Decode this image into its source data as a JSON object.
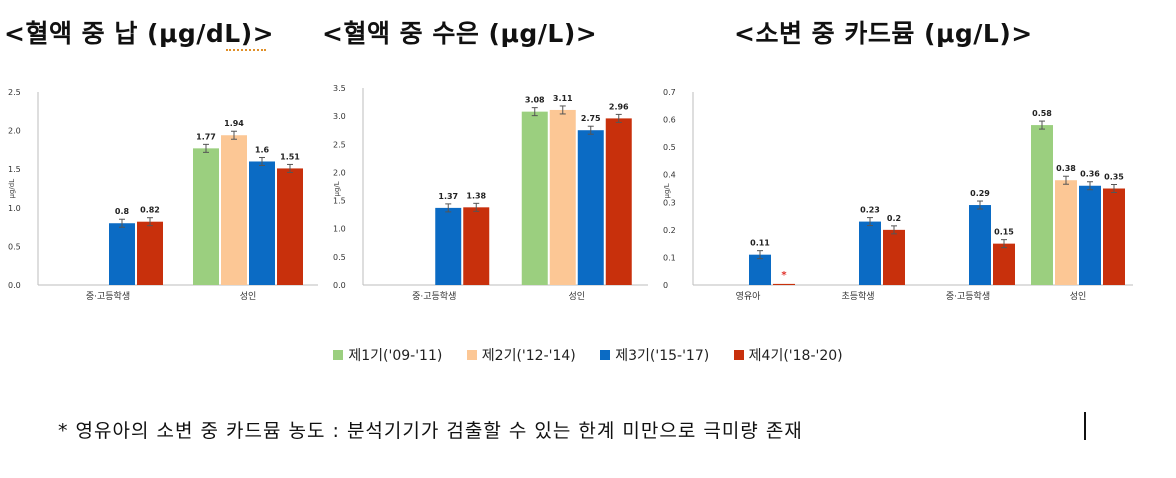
{
  "colors": [
    "#9bcf7f",
    "#fcc795",
    "#0b6bc4",
    "#c8300c"
  ],
  "legend": [
    "제1기('09-'11)",
    "제2기('12-'14)",
    "제3기('15-'17)",
    "제4기('18-'20)"
  ],
  "footnote": "* 영유아의 소변 중 카드뮴 농도 : 분석기기가 검출할 수 있는 한계 미만으로 극미량 존재",
  "chart_data": [
    {
      "type": "bar",
      "title": "<혈액 중 납 (μg/dL)>",
      "ylabel": "μg/dL",
      "ylim": [
        0,
        2.5
      ],
      "yticks": [
        "0.0",
        "0.5",
        "1.0",
        "1.5",
        "2.0",
        "2.5"
      ],
      "categories": [
        "중·고등학생",
        "성인"
      ],
      "series": [
        {
          "name": "제1기('09-'11)",
          "values": [
            null,
            1.77
          ],
          "labels": [
            "",
            "1.77"
          ]
        },
        {
          "name": "제2기('12-'14)",
          "values": [
            null,
            1.94
          ],
          "labels": [
            "",
            "1.94"
          ]
        },
        {
          "name": "제3기('15-'17)",
          "values": [
            0.8,
            1.6
          ],
          "labels": [
            "0.8",
            "1.6"
          ]
        },
        {
          "name": "제4기('18-'20)",
          "values": [
            0.82,
            1.51
          ],
          "labels": [
            "0.82",
            "1.51"
          ]
        }
      ]
    },
    {
      "type": "bar",
      "title": "<혈액 중 수은 (μg/L)>",
      "ylabel": "μg/L",
      "ylim": [
        0,
        3.5
      ],
      "yticks": [
        "0.0",
        "0.5",
        "1.0",
        "1.5",
        "2.0",
        "2.5",
        "3.0",
        "3.5"
      ],
      "categories": [
        "중·고등학생",
        "성인"
      ],
      "series": [
        {
          "name": "제1기('09-'11)",
          "values": [
            null,
            3.08
          ],
          "labels": [
            "",
            "3.08"
          ]
        },
        {
          "name": "제2기('12-'14)",
          "values": [
            null,
            3.11
          ],
          "labels": [
            "",
            "3.11"
          ]
        },
        {
          "name": "제3기('15-'17)",
          "values": [
            1.37,
            2.75
          ],
          "labels": [
            "1.37",
            "2.75"
          ]
        },
        {
          "name": "제4기('18-'20)",
          "values": [
            1.38,
            2.96
          ],
          "labels": [
            "1.38",
            "2.96"
          ]
        }
      ]
    },
    {
      "type": "bar",
      "title": "<소변 중 카드뮴 (μg/L)>",
      "ylabel": "μg/L",
      "ylim": [
        0,
        0.7
      ],
      "yticks": [
        "0",
        "0.1",
        "0.2",
        "0.3",
        "0.4",
        "0.5",
        "0.6",
        "0.7"
      ],
      "categories": [
        "영유아",
        "초등학생",
        "중·고등학생",
        "성인"
      ],
      "series": [
        {
          "name": "제1기('09-'11)",
          "values": [
            null,
            null,
            null,
            0.58
          ],
          "labels": [
            "",
            "",
            "",
            "0.58"
          ]
        },
        {
          "name": "제2기('12-'14)",
          "values": [
            null,
            null,
            null,
            0.38
          ],
          "labels": [
            "",
            "",
            "",
            "0.38"
          ]
        },
        {
          "name": "제3기('15-'17)",
          "values": [
            0.11,
            0.23,
            0.29,
            0.36
          ],
          "labels": [
            "0.11",
            "0.23",
            "0.29",
            "0.36"
          ]
        },
        {
          "name": "제4기('18-'20)",
          "values": [
            0.004,
            0.2,
            0.15,
            0.35
          ],
          "labels": [
            "*",
            "0.2",
            "0.15",
            "0.35"
          ]
        }
      ]
    }
  ]
}
